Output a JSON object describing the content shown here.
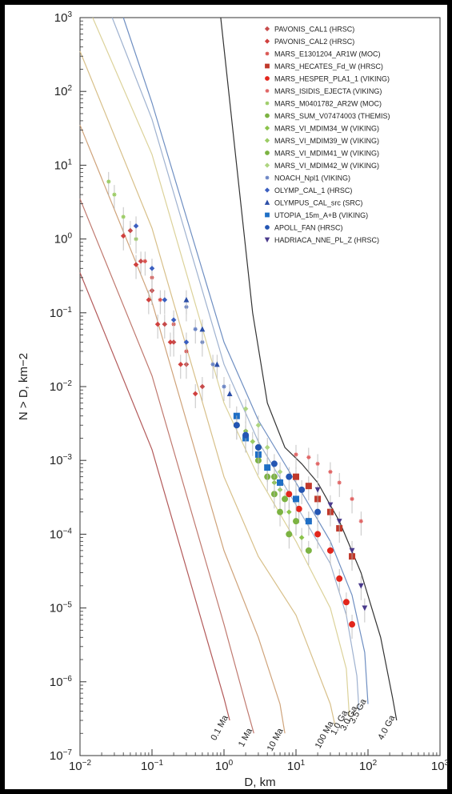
{
  "chart_data": {
    "type": "line",
    "xlabel": "D, km",
    "ylabel": "N > D, km−2",
    "xscale": "log",
    "yscale": "log",
    "xlim": [
      0.01,
      1000
    ],
    "ylim": [
      1e-07,
      1000
    ],
    "x_ticks": [
      {
        "value": 0.01,
        "base": "10",
        "exp": "−2"
      },
      {
        "value": 0.1,
        "base": "10",
        "exp": "−1"
      },
      {
        "value": 1,
        "base": "10",
        "exp": "0"
      },
      {
        "value": 10,
        "base": "10",
        "exp": "1"
      },
      {
        "value": 100,
        "base": "10",
        "exp": "2"
      },
      {
        "value": 1000,
        "base": "10",
        "exp": "3"
      }
    ],
    "y_ticks": [
      {
        "value": 1000,
        "base": "10",
        "exp": "3"
      },
      {
        "value": 100,
        "base": "10",
        "exp": "2"
      },
      {
        "value": 10,
        "base": "10",
        "exp": "1"
      },
      {
        "value": 1,
        "base": "10",
        "exp": "0"
      },
      {
        "value": 0.1,
        "base": "10",
        "exp": "−1"
      },
      {
        "value": 0.01,
        "base": "10",
        "exp": "−2"
      },
      {
        "value": 0.001,
        "base": "10",
        "exp": "−3"
      },
      {
        "value": 0.0001,
        "base": "10",
        "exp": "−4"
      },
      {
        "value": 1e-05,
        "base": "10",
        "exp": "−5"
      },
      {
        "value": 1e-06,
        "base": "10",
        "exp": "−6"
      },
      {
        "value": 1e-07,
        "base": "10",
        "exp": "−7"
      }
    ],
    "legend_position": "top-right",
    "isochrons": [
      {
        "label": "0.1 Ma",
        "color": "#b35a5a",
        "points": [
          [
            0.01,
            0.35
          ],
          [
            0.1,
            0.0014
          ],
          [
            1,
            6e-07
          ],
          [
            1.2,
            3e-07
          ]
        ]
      },
      {
        "label": "1 Ma",
        "color": "#c07a70",
        "points": [
          [
            0.01,
            3.5
          ],
          [
            0.1,
            0.014
          ],
          [
            1,
            6e-06
          ],
          [
            2,
            5e-07
          ],
          [
            2.6,
            2e-07
          ]
        ]
      },
      {
        "label": "10 Ma",
        "color": "#cfa37a",
        "points": [
          [
            0.01,
            35
          ],
          [
            0.1,
            0.14
          ],
          [
            1,
            6e-05
          ],
          [
            3,
            4e-06
          ],
          [
            6,
            5e-07
          ],
          [
            7,
            2e-07
          ]
        ]
      },
      {
        "label": "100 Ma",
        "color": "#d8c08a",
        "points": [
          [
            0.01,
            350
          ],
          [
            0.1,
            1.4
          ],
          [
            1,
            0.0006
          ],
          [
            3,
            5e-05
          ],
          [
            10,
            8e-06
          ],
          [
            30,
            5e-07
          ],
          [
            35,
            2.5e-07
          ]
        ]
      },
      {
        "label": "1.0 Ga",
        "color": "#dcd29a",
        "points": [
          [
            0.015,
            1000
          ],
          [
            0.1,
            14
          ],
          [
            1,
            0.006
          ],
          [
            3,
            0.0006
          ],
          [
            10,
            8e-05
          ],
          [
            30,
            1e-05
          ],
          [
            50,
            1.5e-06
          ],
          [
            55,
            3.5e-07
          ]
        ]
      },
      {
        "label": "3.0 Ga",
        "color": "#9fb2d0",
        "points": [
          [
            0.028,
            1000
          ],
          [
            0.1,
            42
          ],
          [
            1,
            0.02
          ],
          [
            3,
            0.0018
          ],
          [
            10,
            0.00025
          ],
          [
            30,
            4e-05
          ],
          [
            50,
            8e-06
          ],
          [
            70,
            1.2e-06
          ],
          [
            75,
            4e-07
          ]
        ]
      },
      {
        "label": "3.5 Ga",
        "color": "#6f8fc2",
        "points": [
          [
            0.04,
            1000
          ],
          [
            0.1,
            70
          ],
          [
            1,
            0.04
          ],
          [
            3,
            0.0035
          ],
          [
            10,
            0.0005
          ],
          [
            30,
            8e-05
          ],
          [
            60,
            1.5e-05
          ],
          [
            90,
            2.5e-06
          ],
          [
            100,
            5e-07
          ]
        ]
      },
      {
        "label": "4.0 Ga",
        "color": "#333333",
        "points": [
          [
            0.9,
            1000
          ],
          [
            1.5,
            10
          ],
          [
            2.5,
            0.1
          ],
          [
            4,
            0.006
          ],
          [
            7,
            0.0015
          ],
          [
            12,
            0.0009
          ],
          [
            20,
            0.0005
          ],
          [
            40,
            0.00015
          ],
          [
            80,
            3e-05
          ],
          [
            150,
            4e-06
          ],
          [
            220,
            6e-07
          ],
          [
            250,
            3e-07
          ]
        ]
      }
    ],
    "series": [
      {
        "name": "PAVONIS_CAL1 (HRSC)",
        "color": "#c74b4b",
        "marker": "diamond",
        "points": [
          [
            0.05,
            1.3
          ],
          [
            0.07,
            0.5
          ],
          [
            0.1,
            0.2
          ],
          [
            0.15,
            0.07
          ],
          [
            0.2,
            0.04
          ],
          [
            0.3,
            0.02
          ],
          [
            0.5,
            0.01
          ]
        ]
      },
      {
        "name": "PAVONIS_CAL2 (HRSC)",
        "color": "#d0413f",
        "marker": "diamond",
        "points": [
          [
            0.04,
            1.1
          ],
          [
            0.06,
            0.45
          ],
          [
            0.09,
            0.15
          ],
          [
            0.12,
            0.07
          ],
          [
            0.18,
            0.04
          ],
          [
            0.25,
            0.02
          ],
          [
            0.4,
            0.008
          ]
        ]
      },
      {
        "name": "MARS_E1301204_AR1W (MOC)",
        "color": "#d9534f",
        "marker": "star",
        "points": [
          [
            0.08,
            0.5
          ],
          [
            0.1,
            0.3
          ],
          [
            0.13,
            0.15
          ],
          [
            0.2,
            0.07
          ],
          [
            0.3,
            0.03
          ]
        ]
      },
      {
        "name": "MARS_HECATES_Fd_W (HRSC)",
        "color": "#c0392b",
        "marker": "square",
        "points": [
          [
            10,
            0.0006
          ],
          [
            15,
            0.00045
          ],
          [
            20,
            0.0003
          ],
          [
            30,
            0.0002
          ],
          [
            40,
            0.00012
          ],
          [
            60,
            5e-05
          ]
        ]
      },
      {
        "name": "MARS_HESPER_PLA1_1 (VIKING)",
        "color": "#e2261c",
        "marker": "circle",
        "points": [
          [
            8,
            0.00035
          ],
          [
            11,
            0.00022
          ],
          [
            15,
            0.00015
          ],
          [
            20,
            0.0001
          ],
          [
            30,
            6e-05
          ],
          [
            40,
            2.5e-05
          ],
          [
            50,
            1.2e-05
          ],
          [
            60,
            6e-06
          ]
        ]
      },
      {
        "name": "MARS_ISIDIS_EJECTA (VIKING)",
        "color": "#e06666",
        "marker": "star",
        "points": [
          [
            10,
            0.0012
          ],
          [
            15,
            0.0011
          ],
          [
            20,
            0.0009
          ],
          [
            30,
            0.0007
          ],
          [
            40,
            0.0005
          ],
          [
            60,
            0.0003
          ],
          [
            80,
            0.00015
          ]
        ]
      },
      {
        "name": "MARS_M0401782_AR2W (MOC)",
        "color": "#9ccc65",
        "marker": "star",
        "points": [
          [
            0.025,
            6
          ],
          [
            0.03,
            4
          ],
          [
            0.04,
            2
          ],
          [
            0.06,
            1
          ]
        ]
      },
      {
        "name": "MARS_SUM_V07474003 (THEMIS)",
        "color": "#7cb342",
        "marker": "circle",
        "points": [
          [
            1.5,
            0.003
          ],
          [
            2,
            0.002
          ],
          [
            3,
            0.001
          ],
          [
            4,
            0.0006
          ],
          [
            5,
            0.00035
          ],
          [
            6,
            0.0002
          ],
          [
            8,
            0.0001
          ]
        ]
      },
      {
        "name": "MARS_VI_MDIM34_W (VIKING)",
        "color": "#8bc34a",
        "marker": "diamond",
        "points": [
          [
            2,
            0.0025
          ],
          [
            3,
            0.0012
          ],
          [
            5,
            0.0005
          ],
          [
            8,
            0.0002
          ],
          [
            12,
            9e-05
          ]
        ]
      },
      {
        "name": "MARS_VI_MDIM39_W (VIKING)",
        "color": "#9ccc65",
        "marker": "diamond",
        "points": [
          [
            2.5,
            0.0018
          ],
          [
            4,
            0.0008
          ],
          [
            6,
            0.0004
          ],
          [
            10,
            0.00015
          ]
        ]
      },
      {
        "name": "MARS_VI_MDIM41_W (VIKING)",
        "color": "#7cb342",
        "marker": "circle",
        "points": [
          [
            3,
            0.0015
          ],
          [
            5,
            0.0006
          ],
          [
            7,
            0.0003
          ],
          [
            10,
            0.00015
          ],
          [
            15,
            6e-05
          ]
        ]
      },
      {
        "name": "MARS_VI_MDIM42_W (VIKING)",
        "color": "#aed581",
        "marker": "diamond",
        "points": [
          [
            2,
            0.005
          ],
          [
            3,
            0.003
          ],
          [
            4,
            0.0015
          ],
          [
            6,
            0.0007
          ]
        ]
      },
      {
        "name": "NOACH_Npl1 (VIKING)",
        "color": "#6a84c4",
        "marker": "star",
        "points": [
          [
            0.3,
            0.12
          ],
          [
            0.4,
            0.06
          ],
          [
            0.5,
            0.04
          ],
          [
            0.7,
            0.02
          ],
          [
            1,
            0.01
          ]
        ]
      },
      {
        "name": "OLYMP_CAL_1 (HRSC)",
        "color": "#3b5fc0",
        "marker": "diamond",
        "points": [
          [
            0.06,
            1.5
          ],
          [
            0.1,
            0.4
          ],
          [
            0.15,
            0.15
          ],
          [
            0.2,
            0.08
          ],
          [
            0.3,
            0.04
          ]
        ]
      },
      {
        "name": "OLYMPUS_CAL_src (SRC)",
        "color": "#2c4fa8",
        "marker": "triangle",
        "points": [
          [
            0.3,
            0.15
          ],
          [
            0.5,
            0.06
          ],
          [
            0.8,
            0.02
          ],
          [
            1.2,
            0.008
          ]
        ]
      },
      {
        "name": "UTOPIA_15m_A+B (VIKING)",
        "color": "#1f6fc5",
        "marker": "square",
        "points": [
          [
            1.5,
            0.004
          ],
          [
            2,
            0.002
          ],
          [
            3,
            0.0012
          ],
          [
            4,
            0.0008
          ],
          [
            6,
            0.0005
          ],
          [
            10,
            0.0003
          ],
          [
            15,
            0.00015
          ]
        ]
      },
      {
        "name": "APOLL_FAN (HRSC)",
        "color": "#2456b3",
        "marker": "circle",
        "points": [
          [
            1.5,
            0.003
          ],
          [
            2,
            0.0022
          ],
          [
            3,
            0.0015
          ],
          [
            5,
            0.0009
          ],
          [
            8,
            0.0006
          ],
          [
            12,
            0.0004
          ],
          [
            20,
            0.0002
          ]
        ]
      },
      {
        "name": "HADRIACA_NNE_PL_Z (HRSC)",
        "color": "#4a3a8c",
        "marker": "triangle-down",
        "points": [
          [
            20,
            0.0004
          ],
          [
            30,
            0.00025
          ],
          [
            40,
            0.00015
          ],
          [
            60,
            6e-05
          ],
          [
            80,
            2e-05
          ],
          [
            90,
            1e-05
          ]
        ]
      }
    ]
  }
}
